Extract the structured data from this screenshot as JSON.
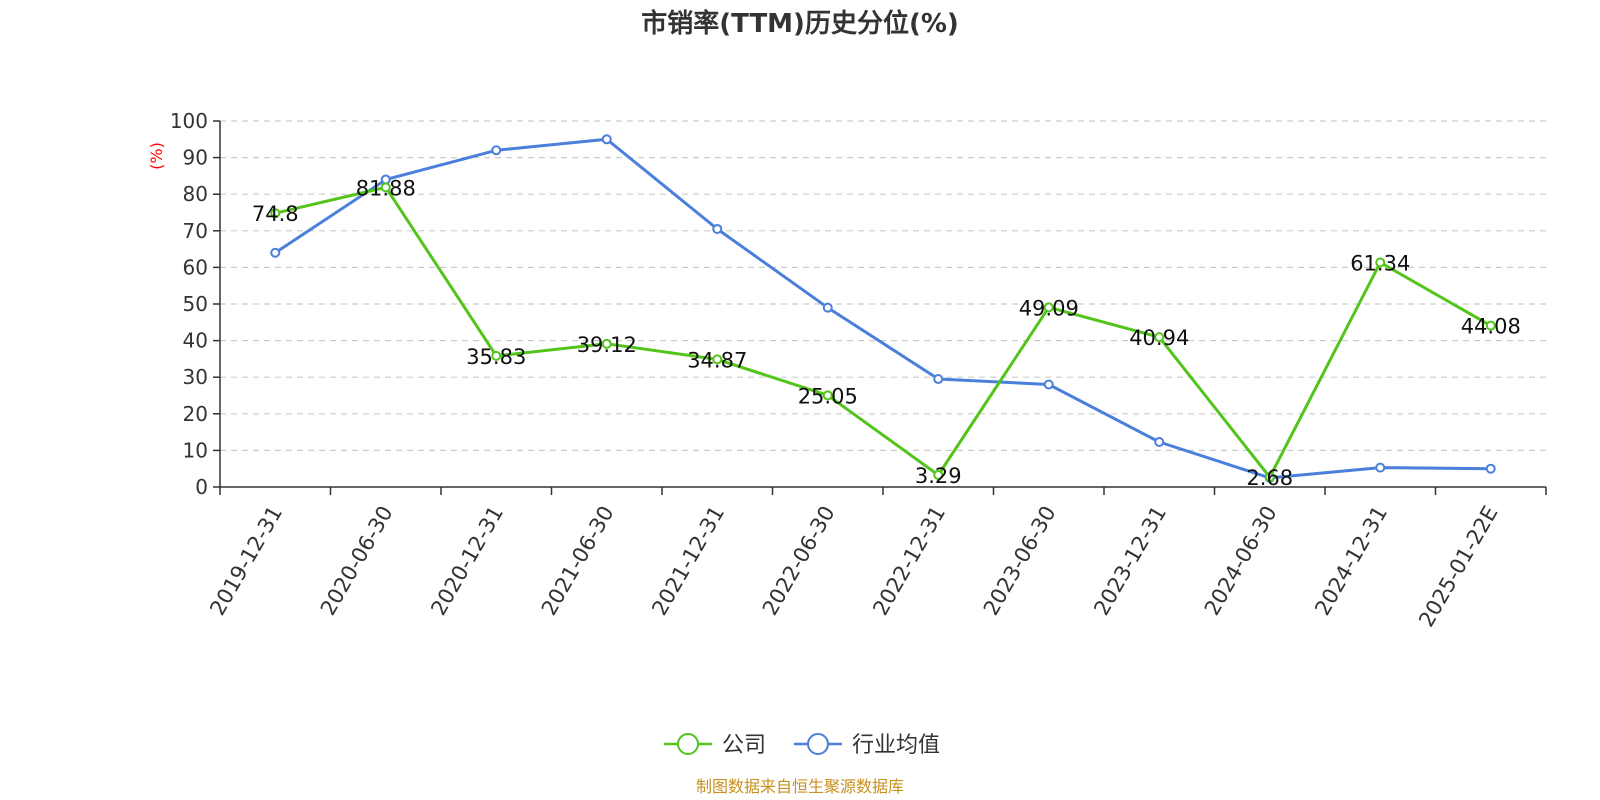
{
  "chart_data": {
    "type": "line",
    "title": "市销率(TTM)历史分位(%)",
    "ylabel": "(%)",
    "ylim": [
      0,
      100
    ],
    "yticks": [
      0,
      10,
      20,
      30,
      40,
      50,
      60,
      70,
      80,
      90,
      100
    ],
    "grid": true,
    "legend_position": "bottom",
    "categories": [
      "2019-12-31",
      "2020-06-30",
      "2020-12-31",
      "2021-06-30",
      "2021-12-31",
      "2022-06-30",
      "2022-12-31",
      "2023-06-30",
      "2023-12-31",
      "2024-06-30",
      "2024-12-31",
      "2025-01-22E"
    ],
    "series": [
      {
        "name": "公司",
        "color": "#52c41a",
        "values": [
          74.8,
          81.88,
          35.83,
          39.12,
          34.87,
          25.05,
          3.29,
          49.09,
          40.94,
          2.68,
          61.34,
          44.08
        ],
        "labels": [
          "74.8",
          "81.88",
          "35.83",
          "39.12",
          "34.87",
          "25.05",
          "3.29",
          "49.09",
          "40.94",
          "2.68",
          "61.34",
          "44.08"
        ]
      },
      {
        "name": "行业均值",
        "color": "#4a7fdc",
        "values": [
          64,
          84,
          92,
          95,
          70.5,
          49,
          29.5,
          28,
          12.3,
          2.5,
          5.3,
          5
        ]
      }
    ],
    "source": "制图数据来自恒生聚源数据库"
  }
}
